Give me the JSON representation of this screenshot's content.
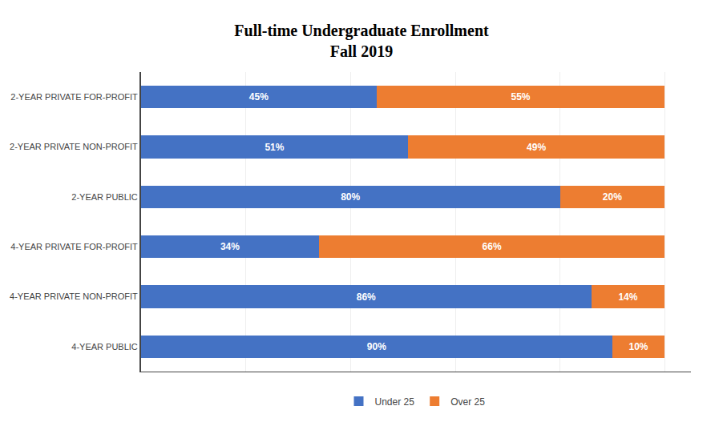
{
  "chart_data": {
    "type": "bar",
    "orientation": "horizontal",
    "stacked": true,
    "title": "Full-time Undergraduate Enrollment\nFall 2019",
    "categories": [
      "2-YEAR PRIVATE FOR-PROFIT",
      "2-YEAR PRIVATE NON-PROFIT",
      "2-YEAR PUBLIC",
      "4-YEAR PRIVATE FOR-PROFIT",
      "4-YEAR PRIVATE NON-PROFIT",
      "4-YEAR PUBLIC"
    ],
    "series": [
      {
        "name": "Under 25",
        "color": "#4472C4",
        "values": [
          45,
          51,
          80,
          34,
          86,
          90
        ],
        "value_labels": [
          "45%",
          "51%",
          "80%",
          "34%",
          "86%",
          "90%"
        ]
      },
      {
        "name": "Over 25",
        "color": "#ED7D31",
        "values": [
          55,
          49,
          20,
          66,
          14,
          10
        ],
        "value_labels": [
          "55%",
          "49%",
          "20%",
          "66%",
          "14%",
          "10%"
        ]
      }
    ],
    "xlim": [
      0,
      105
    ],
    "xticks": [
      20,
      40,
      60,
      80,
      100
    ],
    "grid": true,
    "data_labels": true,
    "tick_labels": "y",
    "legend": "bottom"
  }
}
